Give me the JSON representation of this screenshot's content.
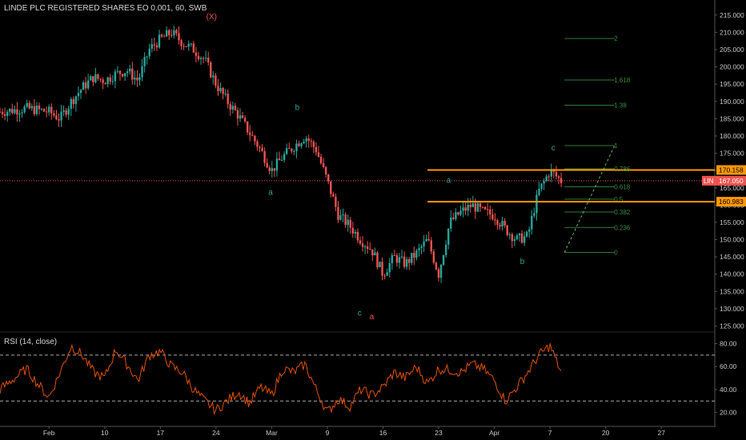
{
  "header": {
    "title": "LINDE PLC REGISTERED SHARES EO 0,001, 60, SWB"
  },
  "rsi": {
    "title": "RSI (14, close)",
    "ticks": [
      "80.00",
      "60.00",
      "40.00",
      "20.00"
    ],
    "tick_values": [
      80,
      60,
      40,
      20
    ],
    "upper_band": 70,
    "lower_band": 30
  },
  "colors": {
    "background": "#000000",
    "up_candle": "#26a69a",
    "down_candle": "#ef5350",
    "level_line": "#ff9800",
    "last_price_badge": "#ef5350",
    "fib_line": "#2e7d32",
    "rsi_line": "#e65100",
    "wave_label": "#26a69a",
    "wave_label_major": "#ef5350"
  },
  "chart_data": {
    "type": "candlestick",
    "symbol_label": "LIN",
    "y_ticks": [
      "215.000",
      "210.000",
      "205.000",
      "200.000",
      "195.000",
      "190.000",
      "185.000",
      "180.000",
      "175.000",
      "170.000",
      "165.000",
      "160.000",
      "155.000",
      "150.000",
      "145.000",
      "140.000",
      "135.000",
      "130.000",
      "125.000"
    ],
    "y_tick_values": [
      215,
      210,
      205,
      200,
      195,
      190,
      185,
      180,
      175,
      170,
      165,
      160,
      155,
      150,
      145,
      140,
      135,
      130,
      125
    ],
    "ylim": [
      123.5,
      217.5
    ],
    "x_ticks": [
      "Feb",
      "10",
      "17",
      "24",
      "Mar",
      "9",
      "16",
      "23",
      "Apr",
      "7",
      "20",
      "27"
    ],
    "x_tick_positions": [
      2.0,
      7.0,
      12.0,
      17.0,
      22.0,
      27.0,
      32.0,
      37.0,
      42.0,
      47.0,
      52.0,
      57.0
    ],
    "xlim": [
      -2.4,
      61.8
    ],
    "price_path": [
      [
        -2.4,
        187
      ],
      [
        0,
        188
      ],
      [
        2,
        187
      ],
      [
        3,
        185
      ],
      [
        4,
        190
      ],
      [
        5,
        194
      ],
      [
        6,
        197
      ],
      [
        7,
        196
      ],
      [
        8,
        198
      ],
      [
        9,
        199
      ],
      [
        10,
        196
      ],
      [
        11,
        205
      ],
      [
        12,
        208
      ],
      [
        13,
        210
      ],
      [
        14,
        207
      ],
      [
        15,
        205
      ],
      [
        16,
        202
      ],
      [
        17,
        195
      ],
      [
        18,
        190
      ],
      [
        19,
        186
      ],
      [
        20,
        181
      ],
      [
        21,
        176
      ],
      [
        22,
        170
      ],
      [
        23,
        174
      ],
      [
        24,
        177
      ],
      [
        25,
        180
      ],
      [
        26,
        176
      ],
      [
        27,
        167
      ],
      [
        28,
        157
      ],
      [
        29,
        154
      ],
      [
        30,
        150
      ],
      [
        31,
        147
      ],
      [
        32,
        140
      ],
      [
        33,
        145
      ],
      [
        34,
        143
      ],
      [
        35,
        146
      ],
      [
        36,
        150
      ],
      [
        37,
        140
      ],
      [
        38,
        155
      ],
      [
        39,
        158
      ],
      [
        40,
        160
      ],
      [
        41,
        158
      ],
      [
        42,
        157
      ],
      [
        43,
        153
      ],
      [
        44,
        150
      ],
      [
        45,
        151
      ],
      [
        45.5,
        158
      ],
      [
        46,
        164
      ],
      [
        47,
        170
      ],
      [
        48,
        167
      ]
    ],
    "lines": [
      {
        "label": "170.158",
        "value": 170.158,
        "from_x": 36.0
      },
      {
        "label": "160.983",
        "value": 160.983,
        "from_x": 36.0
      }
    ],
    "last_price": {
      "label": "167.050",
      "value": 167.05
    },
    "fib_levels": [
      {
        "label": "2",
        "value": 208.2
      },
      {
        "label": "1.618",
        "value": 196.2
      },
      {
        "label": "1.38",
        "value": 188.9
      },
      {
        "label": "1",
        "value": 177.2
      },
      {
        "label": "0.786",
        "value": 170.5
      },
      {
        "label": "0.618",
        "value": 165.3
      },
      {
        "label": "0.5",
        "value": 161.7
      },
      {
        "label": "0.382",
        "value": 158.0
      },
      {
        "label": "0.236",
        "value": 153.5
      },
      {
        "label": "0",
        "value": 146.3
      }
    ],
    "fib_x_range": [
      48.3,
      52.8
    ],
    "fib_trend_line": [
      [
        48.3,
        146.3
      ],
      [
        52.8,
        177.2
      ]
    ],
    "wave_labels": [
      {
        "text": "(X)",
        "x": 16.6,
        "y": 213.8,
        "major": true
      },
      {
        "text": "b",
        "x": 24.3,
        "y": 187.5,
        "major": false
      },
      {
        "text": "a",
        "x": 21.9,
        "y": 163.0,
        "major": false
      },
      {
        "text": "c",
        "x": 29.9,
        "y": 128.0,
        "major": false
      },
      {
        "text": "a",
        "x": 31.0,
        "y": 127.0,
        "major": true
      },
      {
        "text": "a",
        "x": 37.9,
        "y": 166.5,
        "major": false
      },
      {
        "text": "b",
        "x": 44.5,
        "y": 143.0,
        "major": false
      },
      {
        "text": "c",
        "x": 47.3,
        "y": 175.8,
        "major": false
      }
    ],
    "rsi_path": [
      [
        -2.4,
        40
      ],
      [
        0,
        58
      ],
      [
        1,
        45
      ],
      [
        2,
        33
      ],
      [
        3,
        55
      ],
      [
        4,
        78
      ],
      [
        5,
        70
      ],
      [
        6,
        55
      ],
      [
        7,
        50
      ],
      [
        8,
        75
      ],
      [
        9,
        62
      ],
      [
        10,
        48
      ],
      [
        11,
        70
      ],
      [
        12,
        73
      ],
      [
        13,
        60
      ],
      [
        14,
        55
      ],
      [
        15,
        40
      ],
      [
        16,
        30
      ],
      [
        17,
        22
      ],
      [
        18,
        30
      ],
      [
        19,
        38
      ],
      [
        20,
        28
      ],
      [
        21,
        42
      ],
      [
        22,
        35
      ],
      [
        23,
        58
      ],
      [
        24,
        55
      ],
      [
        25,
        62
      ],
      [
        26,
        40
      ],
      [
        27,
        20
      ],
      [
        28,
        32
      ],
      [
        29,
        25
      ],
      [
        30,
        40
      ],
      [
        31,
        35
      ],
      [
        32,
        42
      ],
      [
        33,
        55
      ],
      [
        34,
        50
      ],
      [
        35,
        60
      ],
      [
        36,
        45
      ],
      [
        37,
        58
      ],
      [
        38,
        57
      ],
      [
        39,
        55
      ],
      [
        40,
        62
      ],
      [
        41,
        58
      ],
      [
        42,
        48
      ],
      [
        43,
        30
      ],
      [
        44,
        42
      ],
      [
        45,
        55
      ],
      [
        46,
        70
      ],
      [
        47,
        78
      ],
      [
        48,
        55
      ]
    ]
  }
}
